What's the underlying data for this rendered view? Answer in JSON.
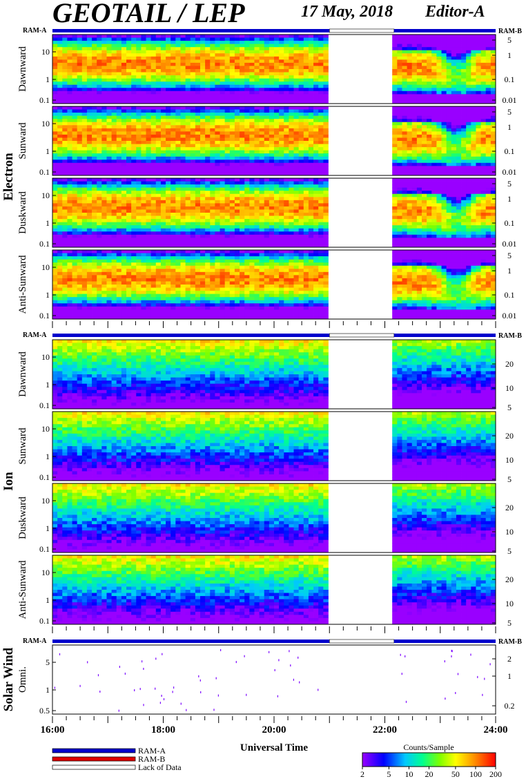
{
  "header": {
    "title": "GEOTAIL / LEP",
    "date": "17 May, 2018",
    "editor": "Editor-A"
  },
  "colors": {
    "ram_a": "#0000cc",
    "ram_b": "#dd0000",
    "lack_of_data": "#ffffff"
  },
  "chart_data": {
    "type": "heatmap",
    "xlabel": "Universal Time",
    "xlim": [
      "16:00",
      "24:00"
    ],
    "x_ticks": [
      "16:00",
      "18:00",
      "20:00",
      "22:00",
      "24:00"
    ],
    "data_gap": [
      "21:00",
      "22:10"
    ],
    "ram_labels": [
      "RAM-A",
      "RAM-B"
    ],
    "groups": [
      {
        "label": "Electron",
        "panels": [
          {
            "name": "Dawnward",
            "y_ticks": [
              "10",
              "1",
              "0.1"
            ],
            "y2_ticks": [
              "5",
              "1",
              "0.1",
              "0.01"
            ]
          },
          {
            "name": "Sunward",
            "y_ticks": [
              "10",
              "1",
              "0.1"
            ],
            "y2_ticks": [
              "5",
              "1",
              "0.1",
              "0.01"
            ]
          },
          {
            "name": "Duskward",
            "y_ticks": [
              "10",
              "1",
              "0.1"
            ],
            "y2_ticks": [
              "5",
              "1",
              "0.1",
              "0.01"
            ]
          },
          {
            "name": "Anti-Sunward",
            "y_ticks": [
              "10",
              "1",
              "0.1"
            ],
            "y2_ticks": [
              "5",
              "1",
              "0.1",
              "0.01"
            ]
          }
        ]
      },
      {
        "label": "Ion",
        "panels": [
          {
            "name": "Dawnward",
            "y_ticks": [
              "10",
              "1",
              "0.1"
            ],
            "y2_ticks": [
              "20",
              "10",
              "5"
            ]
          },
          {
            "name": "Sunward",
            "y_ticks": [
              "10",
              "1",
              "0.1"
            ],
            "y2_ticks": [
              "20",
              "10",
              "5"
            ]
          },
          {
            "name": "Duskward",
            "y_ticks": [
              "10",
              "1",
              "0.1"
            ],
            "y2_ticks": [
              "20",
              "10",
              "5"
            ]
          },
          {
            "name": "Anti-Sunward",
            "y_ticks": [
              "10",
              "1",
              "0.1"
            ],
            "y2_ticks": [
              "20",
              "10",
              "5"
            ]
          }
        ]
      },
      {
        "label": "Solar Wind",
        "panels": [
          {
            "name": "Omni.",
            "y_ticks": [
              "5",
              "1",
              "0.5"
            ],
            "y2_ticks": [
              "2",
              "1",
              "0.2"
            ]
          }
        ]
      }
    ],
    "legend": {
      "items": [
        "RAM-A",
        "RAM-B",
        "Lack of Data"
      ]
    },
    "colorbar": {
      "label": "Counts/Sample",
      "ticks": [
        "2",
        "5",
        "10",
        "20",
        "50",
        "100",
        "200"
      ],
      "range": [
        2,
        200
      ],
      "scale": "log"
    }
  }
}
